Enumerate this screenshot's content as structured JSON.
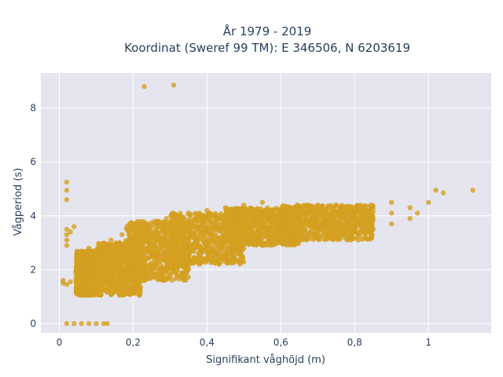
{
  "chart_data": {
    "type": "scatter",
    "title_line1": "År 1979 - 2019",
    "title_line2": "Koordinat (Sweref 99 TM): E 346506, N 6203619",
    "xlabel": "Signifikant våghöjd (m)",
    "ylabel": "Vågperiod (s)",
    "xlim": [
      -0.05,
      1.17
    ],
    "ylim": [
      -0.35,
      9.3
    ],
    "x_ticks": [
      {
        "value": 0,
        "label": "0"
      },
      {
        "value": 0.2,
        "label": "0,2"
      },
      {
        "value": 0.4,
        "label": "0,4"
      },
      {
        "value": 0.6,
        "label": "0,6"
      },
      {
        "value": 0.8,
        "label": "0,8"
      },
      {
        "value": 1,
        "label": "1"
      }
    ],
    "y_ticks": [
      {
        "value": 0,
        "label": "0"
      },
      {
        "value": 2,
        "label": "2"
      },
      {
        "value": 4,
        "label": "4"
      },
      {
        "value": 6,
        "label": "6"
      },
      {
        "value": 8,
        "label": "8"
      }
    ],
    "grid": true,
    "marker_color": "#d4a020",
    "plot_bg": "#e5e5ef",
    "series": [
      {
        "values": [
          [
            0.02,
            0.0
          ],
          [
            0.04,
            0.0
          ],
          [
            0.06,
            0.0
          ],
          [
            0.08,
            0.0
          ],
          [
            0.1,
            0.0
          ],
          [
            0.12,
            0.0
          ],
          [
            0.13,
            0.0
          ],
          [
            0.01,
            1.5
          ],
          [
            0.01,
            1.6
          ],
          [
            0.02,
            1.45
          ],
          [
            0.03,
            1.55
          ],
          [
            0.02,
            2.9
          ],
          [
            0.02,
            3.1
          ],
          [
            0.02,
            3.3
          ],
          [
            0.02,
            3.5
          ],
          [
            0.03,
            3.4
          ],
          [
            0.04,
            3.6
          ],
          [
            0.02,
            4.6
          ],
          [
            0.02,
            4.95
          ],
          [
            0.02,
            5.25
          ],
          [
            0.05,
            1.2
          ],
          [
            0.05,
            1.6
          ],
          [
            0.05,
            2.1
          ],
          [
            0.05,
            2.5
          ],
          [
            0.08,
            1.15
          ],
          [
            0.08,
            1.6
          ],
          [
            0.08,
            2.1
          ],
          [
            0.08,
            2.5
          ],
          [
            0.08,
            2.8
          ],
          [
            0.11,
            1.2
          ],
          [
            0.11,
            1.7
          ],
          [
            0.11,
            2.2
          ],
          [
            0.11,
            2.6
          ],
          [
            0.11,
            2.9
          ],
          [
            0.14,
            1.2
          ],
          [
            0.14,
            1.7
          ],
          [
            0.14,
            2.3
          ],
          [
            0.14,
            2.8
          ],
          [
            0.14,
            3.1
          ],
          [
            0.17,
            1.2
          ],
          [
            0.17,
            1.8
          ],
          [
            0.17,
            2.4
          ],
          [
            0.17,
            2.9
          ],
          [
            0.17,
            3.3
          ],
          [
            0.2,
            1.5
          ],
          [
            0.2,
            2.0
          ],
          [
            0.2,
            2.6
          ],
          [
            0.2,
            3.1
          ],
          [
            0.2,
            3.5
          ],
          [
            0.23,
            1.6
          ],
          [
            0.23,
            2.2
          ],
          [
            0.23,
            2.7
          ],
          [
            0.23,
            3.2
          ],
          [
            0.23,
            3.7
          ],
          [
            0.26,
            1.8
          ],
          [
            0.26,
            2.4
          ],
          [
            0.26,
            2.9
          ],
          [
            0.26,
            3.4
          ],
          [
            0.26,
            3.8
          ],
          [
            0.29,
            1.9
          ],
          [
            0.29,
            2.5
          ],
          [
            0.29,
            3.0
          ],
          [
            0.29,
            3.5
          ],
          [
            0.29,
            3.9
          ],
          [
            0.32,
            2.1
          ],
          [
            0.32,
            2.6
          ],
          [
            0.32,
            3.1
          ],
          [
            0.32,
            3.6
          ],
          [
            0.32,
            4.0
          ],
          [
            0.35,
            2.2
          ],
          [
            0.35,
            2.7
          ],
          [
            0.35,
            3.2
          ],
          [
            0.35,
            3.7
          ],
          [
            0.35,
            4.1
          ],
          [
            0.4,
            2.4
          ],
          [
            0.4,
            2.9
          ],
          [
            0.4,
            3.4
          ],
          [
            0.4,
            3.8
          ],
          [
            0.4,
            4.2
          ],
          [
            0.45,
            2.6
          ],
          [
            0.45,
            3.0
          ],
          [
            0.45,
            3.5
          ],
          [
            0.45,
            3.9
          ],
          [
            0.45,
            4.3
          ],
          [
            0.5,
            2.8
          ],
          [
            0.5,
            3.2
          ],
          [
            0.5,
            3.6
          ],
          [
            0.5,
            4.0
          ],
          [
            0.5,
            4.4
          ],
          [
            0.55,
            2.9
          ],
          [
            0.55,
            3.3
          ],
          [
            0.55,
            3.7
          ],
          [
            0.55,
            4.1
          ],
          [
            0.55,
            4.5
          ],
          [
            0.6,
            3.0
          ],
          [
            0.6,
            3.4
          ],
          [
            0.6,
            3.8
          ],
          [
            0.6,
            4.2
          ],
          [
            0.65,
            3.1
          ],
          [
            0.65,
            3.5
          ],
          [
            0.65,
            3.9
          ],
          [
            0.65,
            4.3
          ],
          [
            0.7,
            3.2
          ],
          [
            0.7,
            3.6
          ],
          [
            0.7,
            4.0
          ],
          [
            0.7,
            4.4
          ],
          [
            0.75,
            3.3
          ],
          [
            0.75,
            3.7
          ],
          [
            0.75,
            4.1
          ],
          [
            0.75,
            4.4
          ],
          [
            0.8,
            3.4
          ],
          [
            0.8,
            3.8
          ],
          [
            0.8,
            4.2
          ],
          [
            0.85,
            3.5
          ],
          [
            0.85,
            3.9
          ],
          [
            0.85,
            4.3
          ],
          [
            0.9,
            3.7
          ],
          [
            0.9,
            4.1
          ],
          [
            0.9,
            4.5
          ],
          [
            0.95,
            3.9
          ],
          [
            0.95,
            4.3
          ],
          [
            0.97,
            4.1
          ],
          [
            1.0,
            4.5
          ],
          [
            1.02,
            4.95
          ],
          [
            1.04,
            4.85
          ],
          [
            1.12,
            4.95
          ],
          [
            0.23,
            8.8
          ],
          [
            0.31,
            8.85
          ]
        ],
        "bands": [
          {
            "x": [
              0.045,
              0.1
            ],
            "y": [
              1.05,
              2.7
            ]
          },
          {
            "x": [
              0.1,
              0.22
            ],
            "y": [
              1.05,
              3.0
            ]
          },
          {
            "x": [
              0.18,
              0.35
            ],
            "y": [
              1.6,
              3.8
            ]
          },
          {
            "x": [
              0.3,
              0.5
            ],
            "y": [
              2.2,
              4.1
            ]
          },
          {
            "x": [
              0.45,
              0.65
            ],
            "y": [
              2.9,
              4.3
            ]
          },
          {
            "x": [
              0.6,
              0.85
            ],
            "y": [
              3.1,
              4.4
            ]
          }
        ]
      }
    ]
  }
}
